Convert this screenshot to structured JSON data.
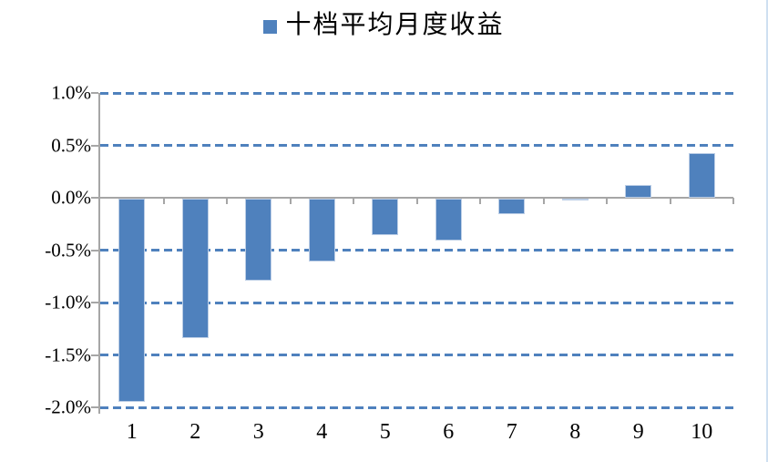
{
  "legend": {
    "label": "十档平均月度收益",
    "marker_color": "#4F81BD"
  },
  "chart_data": {
    "type": "bar",
    "title": "十档平均月度收益",
    "categories": [
      "1",
      "2",
      "3",
      "4",
      "5",
      "6",
      "7",
      "8",
      "9",
      "10"
    ],
    "values": [
      -1.94,
      -1.33,
      -0.78,
      -0.6,
      -0.35,
      -0.4,
      -0.15,
      -0.02,
      0.12,
      0.43
    ],
    "values_unit": "%",
    "xlabel": "",
    "ylabel": "",
    "ylim": [
      -2.0,
      1.0
    ],
    "yticks": [
      1.0,
      0.5,
      0.0,
      -0.5,
      -1.0,
      -1.5,
      -2.0
    ],
    "ytick_labels": [
      "1.0%",
      "0.5%",
      "0.0%",
      "-0.5%",
      "-1.0%",
      "-1.5%",
      "-2.0%"
    ],
    "grid": "horizontal-dashed",
    "legend_position": "top-center",
    "bar_color": "#4F81BD",
    "gridline_color": "#4F81BD",
    "axis_color": "#A6A6A6"
  }
}
